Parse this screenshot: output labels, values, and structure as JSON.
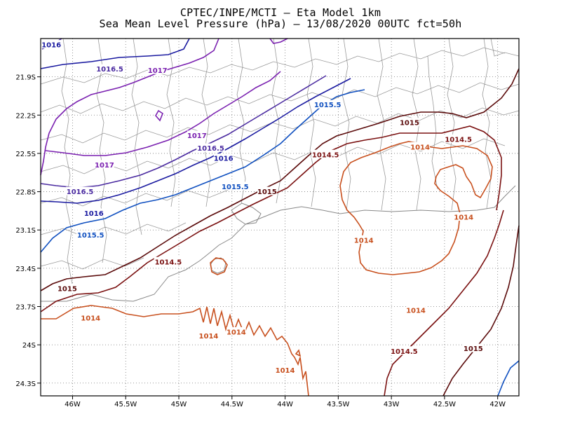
{
  "title": {
    "line1": "CPTEC/INPE/MCTI –  Eta Model 1km",
    "line2": "Sea Mean Level Pressure (hPa) – 13/08/2020 00UTC fct=50h"
  },
  "axes": {
    "lon_min": -46.3,
    "lon_max": -41.8,
    "lat_min": -24.4,
    "lat_max": -21.6,
    "x_ticks": [
      {
        "value": -46.0,
        "label": "46W"
      },
      {
        "value": -45.5,
        "label": "45.5W"
      },
      {
        "value": -45.0,
        "label": "45W"
      },
      {
        "value": -44.5,
        "label": "44.5W"
      },
      {
        "value": -44.0,
        "label": "44W"
      },
      {
        "value": -43.5,
        "label": "43.5W"
      },
      {
        "value": -43.0,
        "label": "43W"
      },
      {
        "value": -42.5,
        "label": "42.5W"
      },
      {
        "value": -42.0,
        "label": "42W"
      }
    ],
    "y_ticks": [
      {
        "value": -21.9,
        "label": "21.9S"
      },
      {
        "value": -22.2,
        "label": "22.2S"
      },
      {
        "value": -22.5,
        "label": "22.5S"
      },
      {
        "value": -22.8,
        "label": "22.8S"
      },
      {
        "value": -23.1,
        "label": "23.1S"
      },
      {
        "value": -23.4,
        "label": "23.4S"
      },
      {
        "value": -23.7,
        "label": "23.7S"
      },
      {
        "value": -24.0,
        "label": "24S"
      },
      {
        "value": -24.3,
        "label": "24.3S"
      }
    ],
    "grid": "dotted"
  },
  "colors": {
    "1014": "#c8501e",
    "1014.5": "#7a1010",
    "1015": "#5a0a0a",
    "1015.5": "#1050c0",
    "1016": "#1a1aa0",
    "1016.5": "#4a2aa0",
    "1017": "#7a20b0",
    "boundary": "#999999"
  },
  "contour_labels": [
    {
      "text": "1016",
      "lon": -46.2,
      "lat": -21.65,
      "level": "1016"
    },
    {
      "text": "1016.5",
      "lon": -45.65,
      "lat": -21.84,
      "level": "1016.5"
    },
    {
      "text": "1017",
      "lon": -45.2,
      "lat": -21.85,
      "level": "1017"
    },
    {
      "text": "1015.5",
      "lon": -43.6,
      "lat": -22.12,
      "level": "1015.5"
    },
    {
      "text": "1017",
      "lon": -44.83,
      "lat": -22.36,
      "level": "1017"
    },
    {
      "text": "1016.5",
      "lon": -44.7,
      "lat": -22.46,
      "level": "1016.5"
    },
    {
      "text": "1016",
      "lon": -44.58,
      "lat": -22.54,
      "level": "1016"
    },
    {
      "text": "1017",
      "lon": -45.7,
      "lat": -22.59,
      "level": "1017"
    },
    {
      "text": "1016.5",
      "lon": -45.93,
      "lat": -22.8,
      "level": "1016.5"
    },
    {
      "text": "1016",
      "lon": -45.8,
      "lat": -22.97,
      "level": "1016"
    },
    {
      "text": "1015.5",
      "lon": -45.83,
      "lat": -23.14,
      "level": "1015.5"
    },
    {
      "text": "1015.5",
      "lon": -44.47,
      "lat": -22.76,
      "level": "1015.5"
    },
    {
      "text": "1015",
      "lon": -44.17,
      "lat": -22.8,
      "level": "1015"
    },
    {
      "text": "1014.5",
      "lon": -43.62,
      "lat": -22.51,
      "level": "1014.5"
    },
    {
      "text": "1015",
      "lon": -42.83,
      "lat": -22.26,
      "level": "1015"
    },
    {
      "text": "1014.5",
      "lon": -42.37,
      "lat": -22.39,
      "level": "1014.5"
    },
    {
      "text": "1014",
      "lon": -42.73,
      "lat": -22.45,
      "level": "1014"
    },
    {
      "text": "1014",
      "lon": -42.32,
      "lat": -23.0,
      "level": "1014"
    },
    {
      "text": "1014",
      "lon": -43.26,
      "lat": -23.18,
      "level": "1014"
    },
    {
      "text": "1014",
      "lon": -42.77,
      "lat": -23.73,
      "level": "1014"
    },
    {
      "text": "1014.5",
      "lon": -45.1,
      "lat": -23.35,
      "level": "1014.5"
    },
    {
      "text": "1015",
      "lon": -46.05,
      "lat": -23.56,
      "level": "1015"
    },
    {
      "text": "1014",
      "lon": -45.83,
      "lat": -23.79,
      "level": "1014"
    },
    {
      "text": "1014",
      "lon": -44.72,
      "lat": -23.93,
      "level": "1014"
    },
    {
      "text": "1014",
      "lon": -44.46,
      "lat": -23.9,
      "level": "1014"
    },
    {
      "text": "1014",
      "lon": -44.0,
      "lat": -24.2,
      "level": "1014"
    },
    {
      "text": "1014.5",
      "lon": -42.88,
      "lat": -24.05,
      "level": "1014.5"
    },
    {
      "text": "1015",
      "lon": -42.23,
      "lat": -24.03,
      "level": "1015"
    }
  ]
}
